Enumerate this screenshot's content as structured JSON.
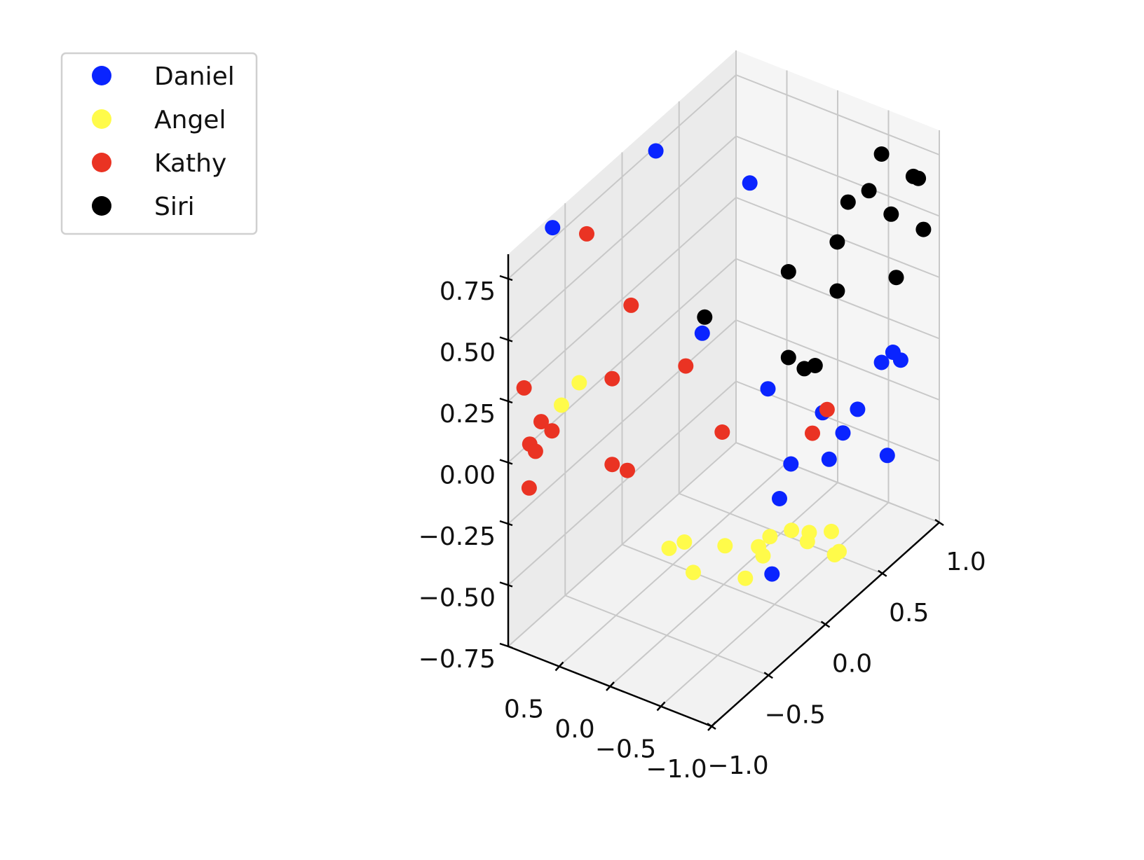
{
  "chart_data": {
    "type": "scatter",
    "projection": "3d",
    "title": "",
    "xlabel": "",
    "ylabel": "",
    "zlabel": "",
    "grid": true,
    "legend_position": "top-left",
    "xlim": [
      -1.0,
      1.0
    ],
    "ylim": [
      -1.0,
      1.0
    ],
    "zlim": [
      -0.75,
      0.85
    ],
    "x_ticks": [
      {
        "value": 0.5,
        "label": "0.5"
      },
      {
        "value": 0.0,
        "label": "0.0"
      },
      {
        "value": -0.5,
        "label": "−0.5"
      },
      {
        "value": -1.0,
        "label": "−1.0"
      }
    ],
    "y_ticks": [
      {
        "value": -1.0,
        "label": "−1.0"
      },
      {
        "value": -0.5,
        "label": "−0.5"
      },
      {
        "value": 0.0,
        "label": "0.0"
      },
      {
        "value": 0.5,
        "label": "0.5"
      },
      {
        "value": 1.0,
        "label": "1.0"
      }
    ],
    "z_ticks": [
      {
        "value": -0.75,
        "label": "−0.75"
      },
      {
        "value": -0.5,
        "label": "−0.50"
      },
      {
        "value": -0.25,
        "label": "−0.25"
      },
      {
        "value": 0.0,
        "label": "0.00"
      },
      {
        "value": 0.25,
        "label": "0.25"
      },
      {
        "value": 0.5,
        "label": "0.50"
      },
      {
        "value": 0.75,
        "label": "0.75"
      }
    ],
    "series": [
      {
        "name": "Daniel",
        "color": "#0a24ff",
        "points": [
          [
            0.78,
            0.1,
            0.85
          ],
          [
            0.9,
            -0.7,
            0.85
          ],
          [
            0.08,
            0.3,
            0.75
          ],
          [
            0.1,
            -0.1,
            0.3
          ],
          [
            0.35,
            0.7,
            -0.3
          ],
          [
            -0.7,
            0.3,
            -0.25
          ],
          [
            -0.7,
            0.55,
            -0.15
          ],
          [
            -0.5,
            0.6,
            -0.3
          ],
          [
            -0.6,
            0.9,
            -0.5
          ],
          [
            -0.1,
            0.5,
            -0.45
          ],
          [
            -0.3,
            0.6,
            -0.25
          ],
          [
            -0.1,
            0.4,
            -0.55
          ],
          [
            -0.25,
            0.2,
            -0.75
          ],
          [
            -0.6,
            0.95,
            -0.1
          ],
          [
            -0.6,
            0.85,
            -0.1
          ],
          [
            -0.9,
            0.75,
            0.0
          ]
        ]
      },
      {
        "name": "Angel",
        "color": "#fffb4a",
        "points": [
          [
            0.7,
            -0.8,
            0.2
          ],
          [
            0.75,
            -0.6,
            0.2
          ],
          [
            0.65,
            0.1,
            -0.75
          ],
          [
            0.5,
            0.1,
            -0.7
          ],
          [
            0.3,
            0.0,
            -0.75
          ],
          [
            0.1,
            0.1,
            -0.65
          ],
          [
            -0.1,
            0.1,
            -0.75
          ],
          [
            -0.05,
            0.3,
            -0.75
          ],
          [
            0.05,
            0.35,
            -0.75
          ],
          [
            0.05,
            0.45,
            -0.75
          ],
          [
            -0.05,
            0.55,
            -0.75
          ],
          [
            0.0,
            0.75,
            -0.85
          ],
          [
            -0.15,
            0.6,
            -0.8
          ],
          [
            -0.35,
            0.7,
            -0.85
          ],
          [
            -0.25,
            0.75,
            -0.9
          ],
          [
            -0.05,
            0.9,
            -0.9
          ]
        ]
      },
      {
        "name": "Kathy",
        "color": "#ea3323",
        "points": [
          [
            0.9,
            -0.95,
            0.3
          ],
          [
            0.9,
            -0.8,
            0.1
          ],
          [
            0.9,
            -0.9,
            0.05
          ],
          [
            0.9,
            -0.85,
            0.0
          ],
          [
            0.85,
            -0.75,
            0.05
          ],
          [
            0.65,
            -0.4,
            0.15
          ],
          [
            0.65,
            -0.4,
            -0.2
          ],
          [
            0.5,
            -0.4,
            -0.2
          ],
          [
            0.85,
            -0.95,
            -0.1
          ],
          [
            0.9,
            -0.4,
            0.7
          ],
          [
            0.8,
            -0.1,
            0.3
          ],
          [
            0.8,
            0.7,
            -0.55
          ],
          [
            0.15,
            -0.2,
            0.2
          ],
          [
            -0.4,
            0.55,
            -0.2
          ],
          [
            -0.2,
            0.6,
            -0.35
          ]
        ]
      },
      {
        "name": "Siri",
        "color": "#000000",
        "points": [
          [
            -0.6,
            0.85,
            0.75
          ],
          [
            -0.8,
            0.95,
            0.65
          ],
          [
            -0.3,
            0.3,
            0.45
          ],
          [
            -0.55,
            0.6,
            0.65
          ],
          [
            -0.7,
            0.65,
            0.7
          ],
          [
            -0.85,
            0.95,
            0.65
          ],
          [
            -0.75,
            0.8,
            0.55
          ],
          [
            -0.5,
            0.55,
            0.5
          ],
          [
            -0.9,
            0.95,
            0.45
          ],
          [
            -0.5,
            0.55,
            0.3
          ],
          [
            -0.8,
            0.8,
            0.3
          ],
          [
            -0.3,
            0.3,
            0.1
          ],
          [
            -0.4,
            0.35,
            0.05
          ],
          [
            -0.45,
            0.4,
            0.05
          ],
          [
            0.3,
            0.1,
            0.25
          ]
        ]
      }
    ]
  }
}
